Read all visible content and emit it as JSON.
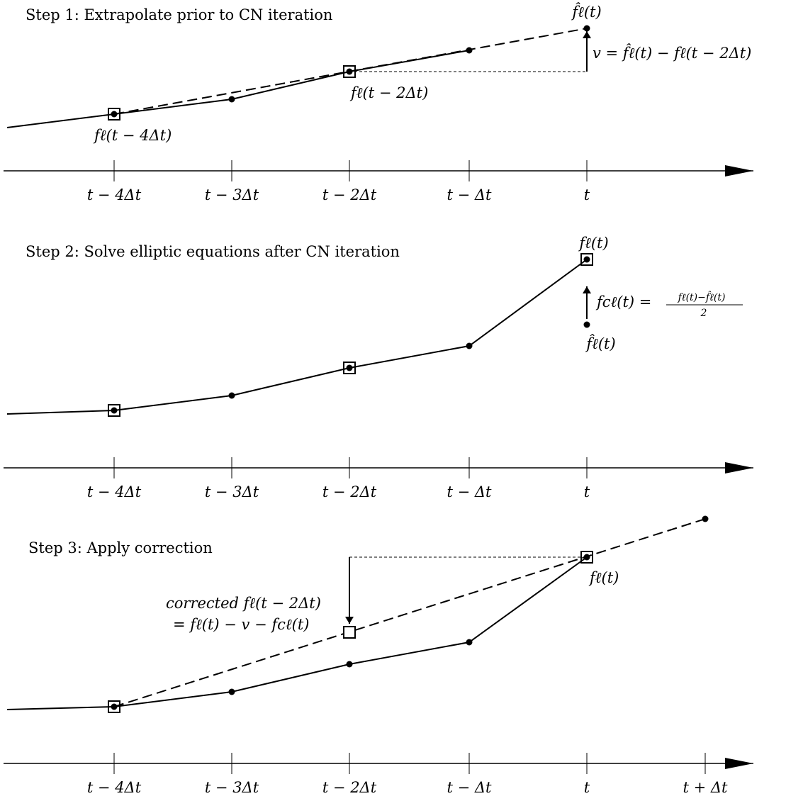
{
  "panels": [
    {
      "title": "Step 1: Extrapolate prior to CN iteration",
      "ticks": [
        "t − 4Δt",
        "t − 3Δt",
        "t − 2Δt",
        "t − Δt",
        "t"
      ],
      "labels": {
        "fhat": "f̂ℓ(t)",
        "v_eq": "v = f̂ℓ(t) − fℓ(t − 2Δt)",
        "f_t_minus_2dt": "fℓ(t − 2Δt)",
        "f_t_minus_4dt": "fℓ(t − 4Δt)"
      }
    },
    {
      "title": "Step 2: Solve elliptic equations after CN iteration",
      "ticks": [
        "t − 4Δt",
        "t − 3Δt",
        "t − 2Δt",
        "t − Δt",
        "t"
      ],
      "labels": {
        "f_t": "fℓ(t)",
        "fc_lhs": "fcℓ(t) =",
        "fc_num": "fℓ(t)−f̂ℓ(t)",
        "fc_den": "2",
        "fhat": "f̂ℓ(t)"
      }
    },
    {
      "title": "Step 3: Apply correction",
      "ticks": [
        "t − 4Δt",
        "t − 3Δt",
        "t − 2Δt",
        "t − Δt",
        "t",
        "t + Δt"
      ],
      "labels": {
        "f_t": "fℓ(t)",
        "corrected_line1": "corrected fℓ(t − 2Δt)",
        "corrected_line2": "= fℓ(t) − v − fcℓ(t)"
      }
    }
  ]
}
